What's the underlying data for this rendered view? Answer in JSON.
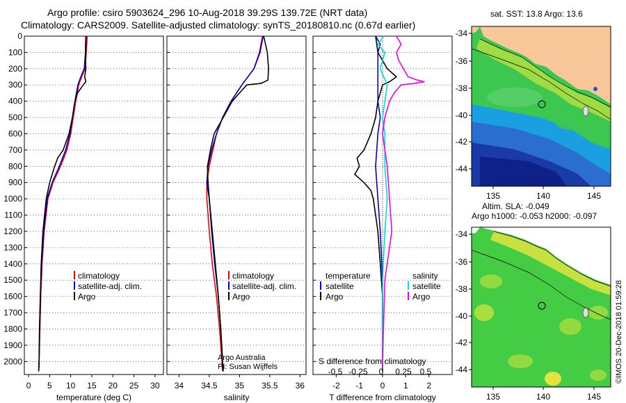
{
  "header": {
    "line1": "Argo profile: csiro 5903624_296 10-Aug-2018 39.29S 139.72E (NRT data)",
    "line2": "Climatology: CARS2009. Satellite-adjusted climatology: synTS_20180810.nc (0.67d earlier)"
  },
  "map_top": {
    "title": "sat. SST: 13.8 Argo: 13.6"
  },
  "map_bottom": {
    "title1": "Altim. SLA: -0.049",
    "title2": "Argo h1000: -0.053 h2000: -0.097"
  },
  "maps": {
    "lat_ticks": [
      "-34",
      "-36",
      "-38",
      "-40",
      "-42",
      "-44"
    ],
    "lon_ticks": [
      "135",
      "140",
      "145"
    ]
  },
  "watermark": "©IMOS 20-Dec-2018 01:59:28",
  "credit": {
    "line1": "Argo Australia",
    "line2": "PI: Susan Wijffels"
  },
  "legend_main": {
    "climatology": "climatology",
    "satellite": "satellite-adj. clim.",
    "argo": "Argo"
  },
  "legend_diff": {
    "temperature": "temperature",
    "salinity": "salinity",
    "satellite": "satellite",
    "argo": "Argo"
  },
  "colors": {
    "climatology": "#ee0000",
    "satellite": "#0000cc",
    "argo": "#000000",
    "sal_sat": "#00dddd",
    "sal_argo": "#ee00ee"
  },
  "chart_data": [
    {
      "type": "line",
      "xlabel": "temperature (deg C)",
      "ylabel": "",
      "xlim": [
        -1,
        32
      ],
      "ylim": [
        2080,
        0
      ],
      "x_ticks": [
        0,
        5,
        10,
        15,
        20,
        25,
        30
      ],
      "y_ticks": [
        0,
        100,
        200,
        300,
        400,
        500,
        600,
        700,
        800,
        900,
        1000,
        1100,
        1200,
        1300,
        1400,
        1500,
        1600,
        1700,
        1800,
        1900,
        2000
      ],
      "series": [
        {
          "name": "climatology",
          "depth": [
            0,
            50,
            100,
            200,
            250,
            300,
            400,
            500,
            600,
            700,
            800,
            900,
            1000,
            1200,
            1400,
            1600,
            1800,
            2000,
            2060
          ],
          "x": [
            13.9,
            13.8,
            13.7,
            13.4,
            12.6,
            11.9,
            11.2,
            10.6,
            10.0,
            9.1,
            7.6,
            5.8,
            4.6,
            3.7,
            3.2,
            2.9,
            2.7,
            2.5,
            2.4
          ]
        },
        {
          "name": "satellite-adj. clim.",
          "depth": [
            0,
            50,
            100,
            200,
            250,
            300,
            400,
            500,
            600,
            700,
            800,
            900,
            1000,
            1200,
            1400,
            1600,
            1800,
            2000,
            2060
          ],
          "x": [
            13.6,
            13.5,
            13.5,
            13.2,
            12.4,
            11.7,
            11.0,
            10.4,
            9.8,
            8.8,
            7.3,
            5.6,
            4.4,
            3.6,
            3.1,
            2.8,
            2.6,
            2.5,
            2.4
          ]
        },
        {
          "name": "Argo",
          "depth": [
            0,
            50,
            100,
            150,
            200,
            250,
            280,
            300,
            350,
            400,
            500,
            600,
            700,
            750,
            800,
            900,
            1000,
            1200,
            1400,
            1600,
            1800,
            2000,
            2060
          ],
          "x": [
            13.6,
            13.6,
            13.5,
            13.5,
            13.6,
            13.3,
            13.6,
            13.0,
            11.6,
            11.0,
            10.4,
            9.6,
            8.2,
            6.9,
            6.2,
            5.0,
            4.2,
            3.4,
            3.0,
            2.8,
            2.6,
            2.5,
            2.4
          ]
        }
      ]
    },
    {
      "type": "line",
      "xlabel": "salinity",
      "ylabel": "",
      "xlim": [
        33.8,
        36.1
      ],
      "ylim": [
        2080,
        0
      ],
      "x_ticks": [
        34,
        34.5,
        35,
        35.5,
        36
      ],
      "x_tick_labels": [
        "34",
        "34.5",
        "35",
        "35.5",
        "36"
      ],
      "series": [
        {
          "name": "climatology",
          "depth": [
            0,
            100,
            200,
            300,
            400,
            500,
            600,
            700,
            800,
            900,
            1000,
            1200,
            1400,
            1600,
            1800,
            2000,
            2060
          ],
          "x": [
            35.38,
            35.33,
            35.24,
            35.04,
            34.86,
            34.72,
            34.62,
            34.56,
            34.5,
            34.46,
            34.46,
            34.5,
            34.55,
            34.62,
            34.67,
            34.71,
            34.72
          ]
        },
        {
          "name": "satellite-adj. clim.",
          "depth": [
            0,
            100,
            200,
            300,
            400,
            500,
            600,
            700,
            800,
            900,
            1000,
            1200,
            1400,
            1600,
            1800,
            2000,
            2060
          ],
          "x": [
            35.39,
            35.34,
            35.24,
            35.04,
            34.86,
            34.72,
            34.62,
            34.54,
            34.48,
            34.46,
            34.5,
            34.54,
            34.59,
            34.65,
            34.69,
            34.72,
            34.73
          ]
        },
        {
          "name": "Argo",
          "depth": [
            0,
            100,
            200,
            270,
            290,
            300,
            350,
            400,
            500,
            600,
            700,
            800,
            900,
            1000,
            1200,
            1400,
            1600,
            1800,
            2000,
            2060
          ],
          "x": [
            35.4,
            35.46,
            35.48,
            35.47,
            35.36,
            35.12,
            35.0,
            34.88,
            34.73,
            34.58,
            34.52,
            34.47,
            34.48,
            34.5,
            34.55,
            34.6,
            34.65,
            34.69,
            34.72,
            34.73
          ]
        }
      ]
    },
    {
      "type": "line",
      "xlabel": "T difference from climatology",
      "ylabel": "",
      "xlim": [
        -3,
        3
      ],
      "ylim": [
        2080,
        0
      ],
      "x_ticks": [
        -2,
        -1,
        0,
        1,
        2
      ],
      "secondary_xlabel": "S difference from climatology",
      "secondary_x_ticks": [
        "-0.5",
        "-0.25",
        "0",
        "0.25",
        "0.5"
      ],
      "series": [
        {
          "name": "temperature satellite",
          "depth": [
            0,
            50,
            100,
            200,
            300,
            400,
            500,
            600,
            800,
            1000,
            1200,
            1500,
            2000,
            2060
          ],
          "x": [
            -0.3,
            -0.1,
            -0.2,
            -0.2,
            -0.2,
            -0.2,
            -0.1,
            -0.2,
            -0.3,
            -0.2,
            -0.1,
            0.0,
            0.0,
            0.0
          ]
        },
        {
          "name": "temperature Argo",
          "depth": [
            0,
            100,
            200,
            250,
            280,
            300,
            350,
            400,
            500,
            600,
            700,
            750,
            800,
            850,
            900,
            950,
            1000,
            1100,
            1200,
            1400,
            1600,
            1800,
            2000,
            2060
          ],
          "x": [
            -0.3,
            -0.2,
            0.2,
            0.6,
            0.3,
            0.0,
            -0.1,
            -0.2,
            -0.3,
            -0.5,
            -0.8,
            -1.1,
            -1.0,
            -1.2,
            -0.8,
            -0.5,
            -0.4,
            -0.3,
            -0.2,
            -0.1,
            0.0,
            0.0,
            0.0,
            0.0
          ]
        },
        {
          "name": "salinity satellite",
          "depth": [
            0,
            50,
            100,
            200,
            300,
            400,
            500,
            600,
            800,
            1000,
            1200,
            1500,
            2000,
            2060
          ],
          "x": [
            0.05,
            -0.2,
            0.1,
            -0.1,
            0.2,
            0.1,
            0.0,
            0.1,
            0.1,
            0.2,
            0.1,
            0.0,
            0.0,
            0.0
          ]
        },
        {
          "name": "salinity Argo",
          "depth": [
            0,
            50,
            100,
            150,
            200,
            250,
            270,
            280,
            290,
            300,
            350,
            400,
            500,
            600,
            800,
            1000,
            1200,
            1500,
            2000,
            2060
          ],
          "x": [
            0.6,
            0.8,
            0.6,
            0.7,
            0.9,
            1.1,
            1.5,
            1.8,
            1.4,
            0.8,
            0.5,
            0.3,
            0.1,
            0.0,
            0.2,
            0.3,
            0.4,
            0.1,
            0.0,
            0.0
          ]
        }
      ]
    }
  ]
}
